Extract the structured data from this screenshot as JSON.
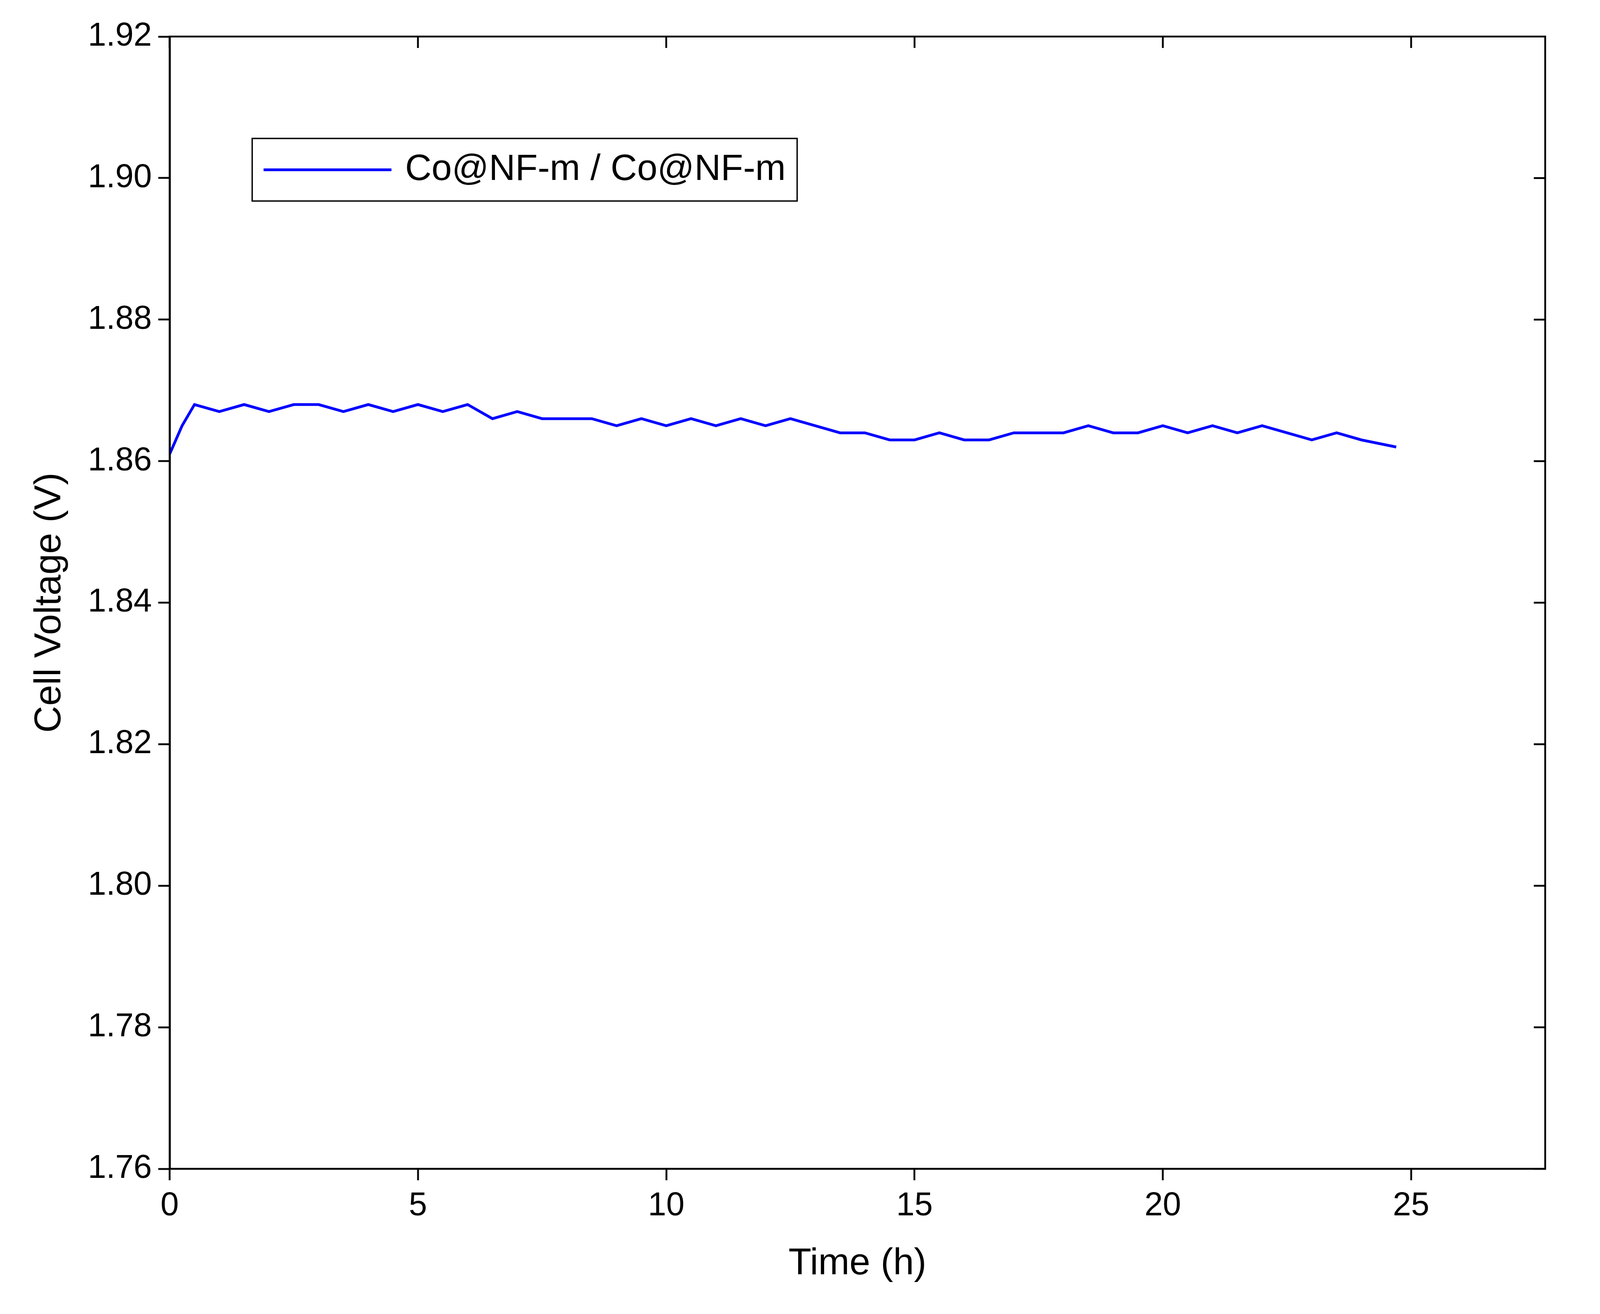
{
  "chart_data": {
    "type": "line",
    "x_label": "Time (h)",
    "y_label": "Cell Voltage (V)",
    "x": [
      0,
      0.25,
      0.5,
      1,
      1.5,
      2,
      2.5,
      3,
      3.5,
      4,
      4.5,
      5,
      5.5,
      6,
      6.5,
      7,
      7.5,
      8,
      8.5,
      9,
      9.5,
      10,
      10.5,
      11,
      11.5,
      12,
      12.5,
      13,
      13.5,
      14,
      14.5,
      15,
      15.5,
      16,
      16.5,
      17,
      17.5,
      18,
      18.5,
      19,
      19.5,
      20,
      20.5,
      21,
      21.5,
      22,
      22.5,
      23,
      23.5,
      24,
      24.7
    ],
    "series": [
      {
        "name": "Co@NF-m / Co@NF-m",
        "color": "#0000ff",
        "values": [
          1.861,
          1.865,
          1.868,
          1.867,
          1.868,
          1.867,
          1.868,
          1.868,
          1.867,
          1.868,
          1.867,
          1.868,
          1.867,
          1.868,
          1.866,
          1.867,
          1.866,
          1.866,
          1.866,
          1.865,
          1.866,
          1.865,
          1.866,
          1.865,
          1.866,
          1.865,
          1.866,
          1.865,
          1.864,
          1.864,
          1.863,
          1.863,
          1.864,
          1.863,
          1.863,
          1.864,
          1.864,
          1.864,
          1.865,
          1.864,
          1.864,
          1.865,
          1.864,
          1.865,
          1.864,
          1.865,
          1.864,
          1.863,
          1.864,
          1.863,
          1.862
        ]
      }
    ],
    "xlim": [
      0,
      27.7
    ],
    "xticks": [
      0,
      5,
      10,
      15,
      20,
      25
    ],
    "ylim": [
      1.76,
      1.92
    ],
    "yticks": [
      1.76,
      1.78,
      {
        "value": 1.8,
        "label": "1.80"
      },
      1.82,
      1.84,
      1.86,
      1.88,
      {
        "value": 1.9,
        "label": "1.90"
      },
      1.92
    ],
    "grid": false,
    "legend": "upper left"
  }
}
